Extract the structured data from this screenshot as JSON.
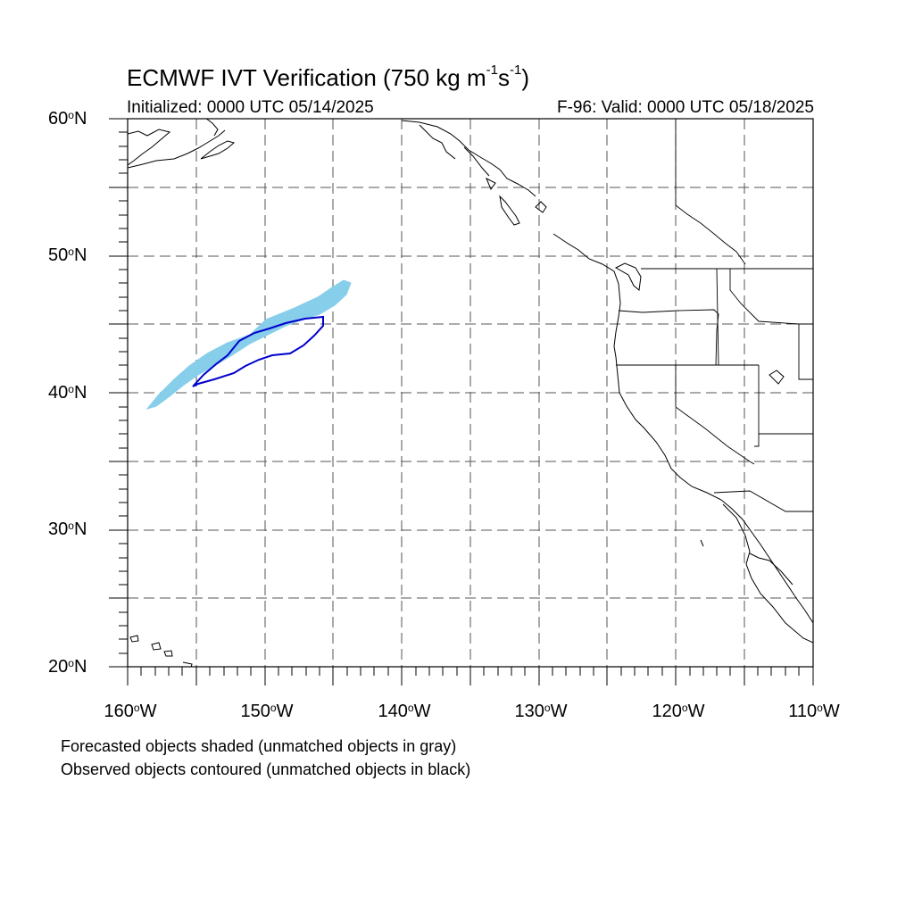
{
  "map": {
    "title": "ECMWF IVT Verification (750 kg m",
    "title_exp1": "-1",
    "title_mid": "s",
    "title_exp2": "-1",
    "title_end": ")",
    "initialized": "Initialized: 0000 UTC 05/14/2025",
    "valid": "F-96: Valid: 0000 UTC 05/18/2025",
    "region": {
      "lat_range": [
        20,
        60
      ],
      "lon_range": [
        -160,
        -110
      ]
    },
    "lat_labels": [
      {
        "value": "60",
        "suffix": "N"
      },
      {
        "value": "50",
        "suffix": "N"
      },
      {
        "value": "40",
        "suffix": "N"
      },
      {
        "value": "30",
        "suffix": "N"
      },
      {
        "value": "20",
        "suffix": "N"
      }
    ],
    "lon_labels": [
      {
        "value": "160",
        "suffix": "W"
      },
      {
        "value": "150",
        "suffix": "W"
      },
      {
        "value": "140",
        "suffix": "W"
      },
      {
        "value": "130",
        "suffix": "W"
      },
      {
        "value": "120",
        "suffix": "W"
      },
      {
        "value": "110",
        "suffix": "W"
      }
    ],
    "legend": {
      "line1": "Forecasted objects shaded (unmatched objects in gray)",
      "line2": "Observed objects contoured (unmatched objects in black)"
    },
    "colors": {
      "forecast_fill": "#87ceeb",
      "observed_contour": "#0000cd",
      "coastline": "#000000",
      "grid": "#555555"
    }
  }
}
